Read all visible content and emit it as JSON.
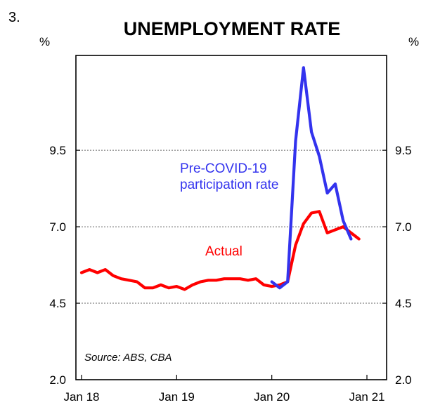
{
  "figure_number": "3.",
  "chart_data": {
    "type": "line",
    "title": "UNEMPLOYMENT RATE",
    "ylabel_left": "%",
    "ylabel_right": "%",
    "xlabel": "",
    "x_ticks": [
      "Jan 18",
      "Jan 19",
      "Jan 20",
      "Jan 21"
    ],
    "y_ticks": [
      "2.0",
      "4.5",
      "7.0",
      "9.5"
    ],
    "ylim": [
      2.0,
      12.6
    ],
    "xlim": [
      "2018-01",
      "2021-01"
    ],
    "grid": "horizontal dashed",
    "annotation": "Source: ABS, CBA",
    "series": [
      {
        "name": "Actual",
        "color": "#ff0000",
        "points": [
          [
            "2018-01",
            5.5
          ],
          [
            "2018-02",
            5.6
          ],
          [
            "2018-03",
            5.5
          ],
          [
            "2018-04",
            5.6
          ],
          [
            "2018-05",
            5.4
          ],
          [
            "2018-06",
            5.3
          ],
          [
            "2018-07",
            5.25
          ],
          [
            "2018-08",
            5.2
          ],
          [
            "2018-09",
            5.0
          ],
          [
            "2018-10",
            5.0
          ],
          [
            "2018-11",
            5.1
          ],
          [
            "2018-12",
            5.0
          ],
          [
            "2019-01",
            5.05
          ],
          [
            "2019-02",
            4.95
          ],
          [
            "2019-03",
            5.1
          ],
          [
            "2019-04",
            5.2
          ],
          [
            "2019-05",
            5.25
          ],
          [
            "2019-06",
            5.25
          ],
          [
            "2019-07",
            5.3
          ],
          [
            "2019-08",
            5.3
          ],
          [
            "2019-09",
            5.3
          ],
          [
            "2019-10",
            5.25
          ],
          [
            "2019-11",
            5.3
          ],
          [
            "2019-12",
            5.1
          ],
          [
            "2020-01",
            5.05
          ],
          [
            "2020-02",
            5.1
          ],
          [
            "2020-03",
            5.2
          ],
          [
            "2020-04",
            6.4
          ],
          [
            "2020-05",
            7.1
          ],
          [
            "2020-06",
            7.45
          ],
          [
            "2020-07",
            7.5
          ],
          [
            "2020-08",
            6.8
          ],
          [
            "2020-09",
            6.9
          ],
          [
            "2020-10",
            7.0
          ],
          [
            "2020-11",
            6.8
          ],
          [
            "2020-12",
            6.6
          ]
        ]
      },
      {
        "name": "Pre-COVID-19 participation rate",
        "label_lines": [
          "Pre-COVID-19",
          "participation rate"
        ],
        "color": "#3333ee",
        "points": [
          [
            "2020-01",
            5.2
          ],
          [
            "2020-02",
            5.0
          ],
          [
            "2020-03",
            5.2
          ],
          [
            "2020-04",
            9.8
          ],
          [
            "2020-05",
            12.2
          ],
          [
            "2020-06",
            10.1
          ],
          [
            "2020-07",
            9.3
          ],
          [
            "2020-08",
            8.1
          ],
          [
            "2020-09",
            8.4
          ],
          [
            "2020-10",
            7.2
          ],
          [
            "2020-11",
            6.6
          ]
        ]
      }
    ]
  }
}
